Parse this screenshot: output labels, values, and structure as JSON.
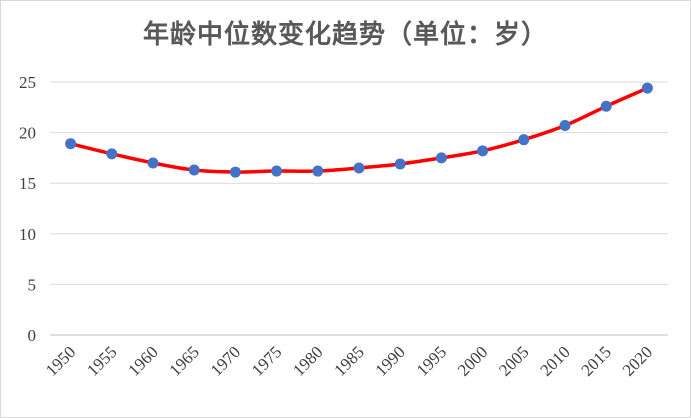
{
  "chart_data": {
    "type": "line",
    "title": "年龄中位数变化趋势（单位：岁）",
    "xlabel": "",
    "ylabel": "",
    "x": [
      "1950",
      "1955",
      "1960",
      "1965",
      "1970",
      "1975",
      "1980",
      "1985",
      "1990",
      "1995",
      "2000",
      "2005",
      "2010",
      "2015",
      "2020"
    ],
    "series": [
      {
        "values": [
          18.9,
          17.9,
          17.0,
          16.3,
          16.1,
          16.2,
          16.2,
          16.5,
          16.9,
          17.5,
          18.2,
          19.3,
          20.7,
          22.6,
          24.4
        ]
      }
    ],
    "ylim": [
      0,
      25
    ],
    "yticks": [
      "0",
      "5",
      "10",
      "15",
      "20",
      "25"
    ],
    "grid": true,
    "legend": "none",
    "colors": {
      "line": "#ff0000",
      "marker": "#4472c4",
      "grid": "#d9d9d9",
      "axis": "#bfbfbf"
    }
  }
}
